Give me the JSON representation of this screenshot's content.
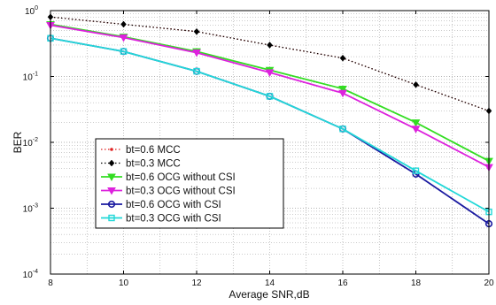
{
  "chart_data": {
    "type": "line",
    "title": "",
    "xlabel": "Average SNR,dB",
    "ylabel": "BER",
    "x": [
      8,
      10,
      12,
      14,
      16,
      18,
      20
    ],
    "xlim": [
      8,
      20
    ],
    "ylim": [
      0.0001,
      1
    ],
    "yscale": "log",
    "x_ticks": [
      "8",
      "10",
      "12",
      "14",
      "16",
      "18",
      "20"
    ],
    "y_ticks": [
      {
        "base": "10",
        "exp": "0",
        "value": 1
      },
      {
        "base": "10",
        "exp": "-1",
        "value": 0.1
      },
      {
        "base": "10",
        "exp": "-2",
        "value": 0.01
      },
      {
        "base": "10",
        "exp": "-3",
        "value": 0.001
      },
      {
        "base": "10",
        "exp": "-4",
        "value": 0.0001
      }
    ],
    "grid": true,
    "legend_position": "left-middle",
    "series": [
      {
        "name": "bt=0.6 MCC",
        "color": "#e02020",
        "marker": "dot",
        "dash": "dotted",
        "values": [
          0.8,
          0.62,
          0.48,
          0.3,
          0.19,
          0.075,
          0.03
        ]
      },
      {
        "name": "bt=0.3 MCC",
        "color": "#000000",
        "marker": "diamond",
        "dash": "dotted",
        "values": [
          0.8,
          0.62,
          0.48,
          0.3,
          0.19,
          0.075,
          0.03
        ]
      },
      {
        "name": "bt=0.6 OCG without CSI",
        "color": "#33dd22",
        "marker": "triangle-down",
        "dash": "solid",
        "values": [
          0.62,
          0.4,
          0.24,
          0.125,
          0.065,
          0.02,
          0.0052
        ]
      },
      {
        "name": "bt=0.3 OCG without CSI",
        "color": "#dd22dd",
        "marker": "triangle-down",
        "dash": "solid",
        "values": [
          0.6,
          0.39,
          0.23,
          0.115,
          0.056,
          0.016,
          0.0042
        ]
      },
      {
        "name": "bt=0.6 OCG with CSI",
        "color": "#1a1aa0",
        "marker": "circle",
        "dash": "solid",
        "values": [
          0.38,
          0.24,
          0.12,
          0.05,
          0.016,
          0.0033,
          0.00058
        ]
      },
      {
        "name": "bt=0.3 OCG with CSI",
        "color": "#22d8d8",
        "marker": "square",
        "dash": "solid",
        "values": [
          0.38,
          0.24,
          0.12,
          0.05,
          0.016,
          0.0037,
          0.00088
        ]
      }
    ]
  }
}
